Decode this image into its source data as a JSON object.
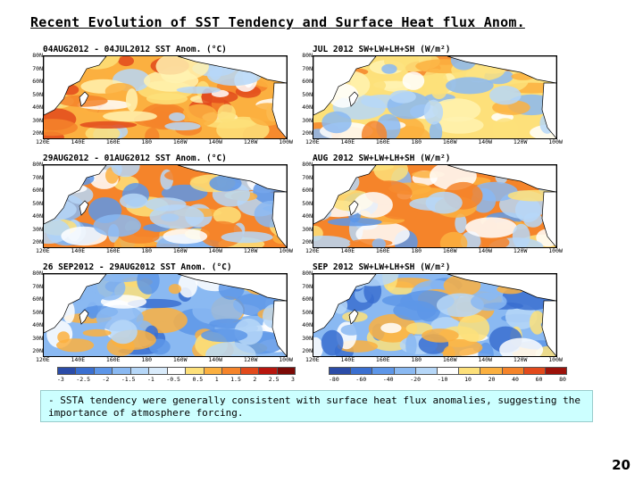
{
  "slide": {
    "title": "Recent Evolution of SST Tendency and  Surface Heat flux Anom.",
    "note": "- SSTA tendency were generally consistent with surface heat flux anomalies, suggesting the importance of atmosphere forcing.",
    "page_number": "20"
  },
  "panels": [
    {
      "title": "04AUG2012 - 04JUL2012  SST Anom. (°C)",
      "kind": "sst",
      "scheme": "warm"
    },
    {
      "title": "JUL 2012  SW+LW+LH+SH  (W/m²)",
      "kind": "flux",
      "scheme": "mixed-warm"
    },
    {
      "title": "29AUG2012 - 01AUG2012  SST Anom. (°C)",
      "kind": "sst",
      "scheme": "mixed"
    },
    {
      "title": "AUG 2012  SW+LW+LH+SH  (W/m²)",
      "kind": "flux",
      "scheme": "mixed"
    },
    {
      "title": "26 SEP2012 - 29AUG2012  SST Anom. (°C)",
      "kind": "sst",
      "scheme": "cool"
    },
    {
      "title": "SEP 2012  SW+LW+LH+SH  (W/m²)",
      "kind": "flux",
      "scheme": "cool"
    }
  ],
  "axes": {
    "y_labels": [
      "80N",
      "70N",
      "60N",
      "50N",
      "40N",
      "30N",
      "20N"
    ],
    "x_labels": [
      "120E",
      "140E",
      "160E",
      "180",
      "160W",
      "140W",
      "120W",
      "100W"
    ]
  },
  "colorbars": {
    "sst": {
      "ticks": [
        "-3",
        "-2.5",
        "-2",
        "-1.5",
        "-1",
        "-0.5",
        "0.5",
        "1",
        "1.5",
        "2",
        "2.5",
        "3"
      ],
      "colors": [
        "#2b4ca8",
        "#3a6fd0",
        "#5d96e8",
        "#8ab9f2",
        "#b6d7f8",
        "#d9ebfb",
        "#ffffff",
        "#fde07a",
        "#fbb040",
        "#f5842a",
        "#e24a1c",
        "#b8160e",
        "#7c0a06"
      ]
    },
    "flux": {
      "ticks": [
        "-80",
        "-60",
        "-40",
        "-20",
        "-10",
        "10",
        "20",
        "40",
        "60",
        "80"
      ],
      "colors": [
        "#2b4ca8",
        "#3a6fd0",
        "#5d96e8",
        "#8ab9f2",
        "#b6d7f8",
        "#ffffff",
        "#fde07a",
        "#fbb040",
        "#f5842a",
        "#e24a1c",
        "#9c120a"
      ]
    }
  }
}
